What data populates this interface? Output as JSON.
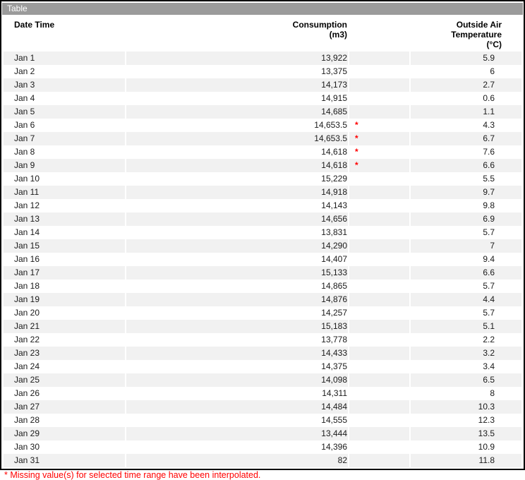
{
  "widget": {
    "title": "Table"
  },
  "table": {
    "headers": {
      "date": "Date Time",
      "consumption_line1": "Consumption",
      "consumption_line2": "(m3)",
      "temperature_line1": "Outside Air Temperature",
      "temperature_line2": "(°C)"
    },
    "interpolated_marker": "*",
    "rows": [
      {
        "date": "Jan 1",
        "consumption": "13,922",
        "interpolated": false,
        "temperature": "5.9"
      },
      {
        "date": "Jan 2",
        "consumption": "13,375",
        "interpolated": false,
        "temperature": "6"
      },
      {
        "date": "Jan 3",
        "consumption": "14,173",
        "interpolated": false,
        "temperature": "2.7"
      },
      {
        "date": "Jan 4",
        "consumption": "14,915",
        "interpolated": false,
        "temperature": "0.6"
      },
      {
        "date": "Jan 5",
        "consumption": "14,685",
        "interpolated": false,
        "temperature": "1.1"
      },
      {
        "date": "Jan 6",
        "consumption": "14,653.5",
        "interpolated": true,
        "temperature": "4.3"
      },
      {
        "date": "Jan 7",
        "consumption": "14,653.5",
        "interpolated": true,
        "temperature": "6.7"
      },
      {
        "date": "Jan 8",
        "consumption": "14,618",
        "interpolated": true,
        "temperature": "7.6"
      },
      {
        "date": "Jan 9",
        "consumption": "14,618",
        "interpolated": true,
        "temperature": "6.6"
      },
      {
        "date": "Jan 10",
        "consumption": "15,229",
        "interpolated": false,
        "temperature": "5.5"
      },
      {
        "date": "Jan 11",
        "consumption": "14,918",
        "interpolated": false,
        "temperature": "9.7"
      },
      {
        "date": "Jan 12",
        "consumption": "14,143",
        "interpolated": false,
        "temperature": "9.8"
      },
      {
        "date": "Jan 13",
        "consumption": "14,656",
        "interpolated": false,
        "temperature": "6.9"
      },
      {
        "date": "Jan 14",
        "consumption": "13,831",
        "interpolated": false,
        "temperature": "5.7"
      },
      {
        "date": "Jan 15",
        "consumption": "14,290",
        "interpolated": false,
        "temperature": "7"
      },
      {
        "date": "Jan 16",
        "consumption": "14,407",
        "interpolated": false,
        "temperature": "9.4"
      },
      {
        "date": "Jan 17",
        "consumption": "15,133",
        "interpolated": false,
        "temperature": "6.6"
      },
      {
        "date": "Jan 18",
        "consumption": "14,865",
        "interpolated": false,
        "temperature": "5.7"
      },
      {
        "date": "Jan 19",
        "consumption": "14,876",
        "interpolated": false,
        "temperature": "4.4"
      },
      {
        "date": "Jan 20",
        "consumption": "14,257",
        "interpolated": false,
        "temperature": "5.7"
      },
      {
        "date": "Jan 21",
        "consumption": "15,183",
        "interpolated": false,
        "temperature": "5.1"
      },
      {
        "date": "Jan 22",
        "consumption": "13,778",
        "interpolated": false,
        "temperature": "2.2"
      },
      {
        "date": "Jan 23",
        "consumption": "14,433",
        "interpolated": false,
        "temperature": "3.2"
      },
      {
        "date": "Jan 24",
        "consumption": "14,375",
        "interpolated": false,
        "temperature": "3.4"
      },
      {
        "date": "Jan 25",
        "consumption": "14,098",
        "interpolated": false,
        "temperature": "6.5"
      },
      {
        "date": "Jan 26",
        "consumption": "14,311",
        "interpolated": false,
        "temperature": "8"
      },
      {
        "date": "Jan 27",
        "consumption": "14,484",
        "interpolated": false,
        "temperature": "10.3"
      },
      {
        "date": "Jan 28",
        "consumption": "14,555",
        "interpolated": false,
        "temperature": "12.3"
      },
      {
        "date": "Jan 29",
        "consumption": "13,444",
        "interpolated": false,
        "temperature": "13.5"
      },
      {
        "date": "Jan 30",
        "consumption": "14,396",
        "interpolated": false,
        "temperature": "10.9"
      },
      {
        "date": "Jan 31",
        "consumption": "82",
        "interpolated": false,
        "temperature": "11.8"
      }
    ]
  },
  "footnote": {
    "text": "* Missing value(s) for selected time range have been interpolated."
  },
  "colors": {
    "titlebar_bg": "#9b9b9b",
    "titlebar_text": "#ffffff",
    "stripe_bg": "#f1f1f1",
    "alert_red": "#ff0000",
    "border": "#000000"
  },
  "chart_data": {
    "type": "table",
    "title": "Table",
    "columns": [
      "Date Time",
      "Consumption (m3)",
      "Outside Air Temperature (°C)"
    ],
    "x": [
      "Jan 1",
      "Jan 2",
      "Jan 3",
      "Jan 4",
      "Jan 5",
      "Jan 6",
      "Jan 7",
      "Jan 8",
      "Jan 9",
      "Jan 10",
      "Jan 11",
      "Jan 12",
      "Jan 13",
      "Jan 14",
      "Jan 15",
      "Jan 16",
      "Jan 17",
      "Jan 18",
      "Jan 19",
      "Jan 20",
      "Jan 21",
      "Jan 22",
      "Jan 23",
      "Jan 24",
      "Jan 25",
      "Jan 26",
      "Jan 27",
      "Jan 28",
      "Jan 29",
      "Jan 30",
      "Jan 31"
    ],
    "series": [
      {
        "name": "Consumption (m3)",
        "values": [
          13922,
          13375,
          14173,
          14915,
          14685,
          14653.5,
          14653.5,
          14618,
          14618,
          15229,
          14918,
          14143,
          14656,
          13831,
          14290,
          14407,
          15133,
          14865,
          14876,
          14257,
          15183,
          13778,
          14433,
          14375,
          14098,
          14311,
          14484,
          14555,
          13444,
          14396,
          82
        ]
      },
      {
        "name": "Outside Air Temperature (°C)",
        "values": [
          5.9,
          6,
          2.7,
          0.6,
          1.1,
          4.3,
          6.7,
          7.6,
          6.6,
          5.5,
          9.7,
          9.8,
          6.9,
          5.7,
          7,
          9.4,
          6.6,
          5.7,
          4.4,
          5.7,
          5.1,
          2.2,
          3.2,
          3.4,
          6.5,
          8,
          10.3,
          12.3,
          13.5,
          10.9,
          11.8
        ]
      }
    ],
    "interpolated_rows": [
      "Jan 6",
      "Jan 7",
      "Jan 8",
      "Jan 9"
    ],
    "footnote": "* Missing value(s) for selected time range have been interpolated."
  }
}
